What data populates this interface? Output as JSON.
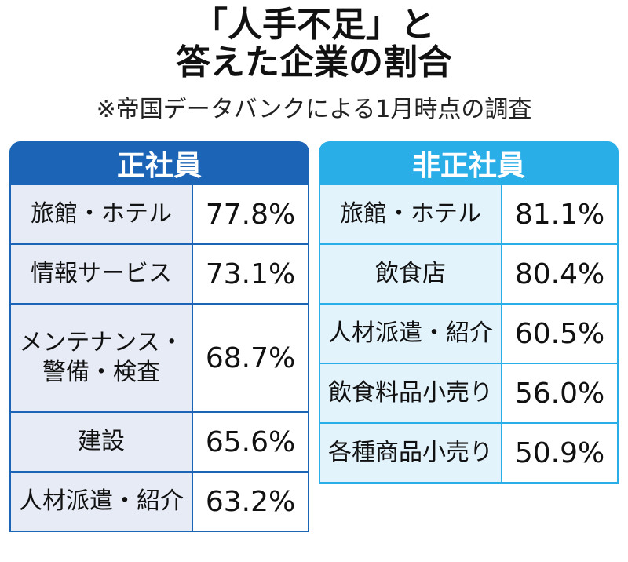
{
  "title_line1": "「人手不足」と",
  "title_line2": "答えた企業の割合",
  "note": "※帝国データバンクによる1月時点の調査",
  "colors": {
    "regular_header": "#1b64b6",
    "nonregular_header": "#29aee8"
  },
  "chart_data": [
    {
      "type": "table",
      "title": "正社員",
      "rows": [
        {
          "category": "旅館・ホテル",
          "value": "77.8%"
        },
        {
          "category": "情報サービス",
          "value": "73.1%"
        },
        {
          "category": "メンテナンス・警備・検査",
          "value": "68.7%"
        },
        {
          "category": "建設",
          "value": "65.6%"
        },
        {
          "category": "人材派遣・紹介",
          "value": "63.2%"
        }
      ]
    },
    {
      "type": "table",
      "title": "非正社員",
      "rows": [
        {
          "category": "旅館・ホテル",
          "value": "81.1%"
        },
        {
          "category": "飲食店",
          "value": "80.4%"
        },
        {
          "category": "人材派遣・紹介",
          "value": "60.5%"
        },
        {
          "category": "飲食料品小売り",
          "value": "56.0%"
        },
        {
          "category": "各種商品小売り",
          "value": "50.9%"
        }
      ]
    }
  ]
}
